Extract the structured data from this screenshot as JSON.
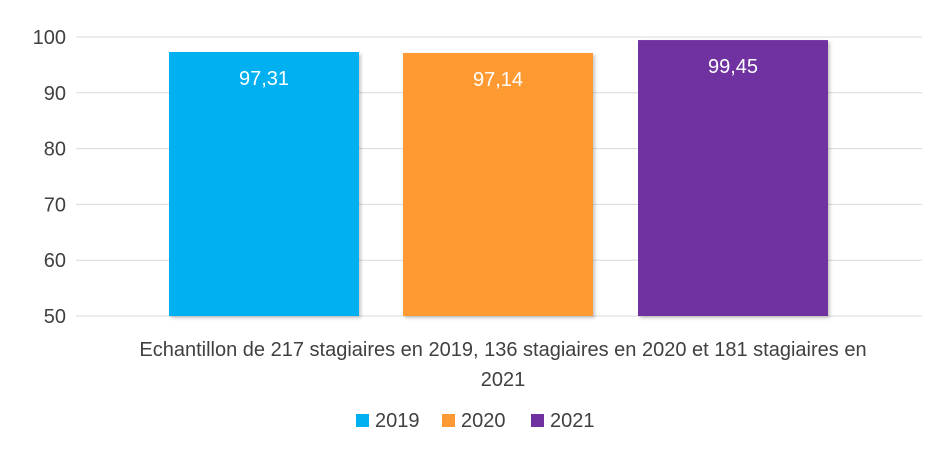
{
  "chart_data": {
    "type": "bar",
    "categories": [
      "Echantillon de 217 stagiaires en 2019, 136 stagiaires en 2020 et 181 stagiaires en 2021"
    ],
    "category_label_lines": [
      "Echantillon de 217 stagiaires en 2019, 136 stagiaires en 2020 et 181 stagiaires en",
      "2021"
    ],
    "series": [
      {
        "name": "2019",
        "values": [
          97.31
        ],
        "label": "97,31",
        "color": "#00B0F0"
      },
      {
        "name": "2020",
        "values": [
          97.14
        ],
        "label": "97,14",
        "color": "#FF9933"
      },
      {
        "name": "2021",
        "values": [
          99.45
        ],
        "label": "99,45",
        "color": "#7030A0"
      }
    ],
    "ylim": [
      50,
      100
    ],
    "yticks": [
      50,
      60,
      70,
      80,
      90,
      100
    ],
    "ytick_labels": [
      "50",
      "60",
      "70",
      "80",
      "90",
      "100"
    ],
    "title": "",
    "xlabel": "",
    "ylabel": "",
    "grid": true,
    "legend_position": "bottom",
    "colors": {
      "grid": "#D9D9D9",
      "text": "#404040",
      "data_label": "#FFFFFF"
    }
  }
}
